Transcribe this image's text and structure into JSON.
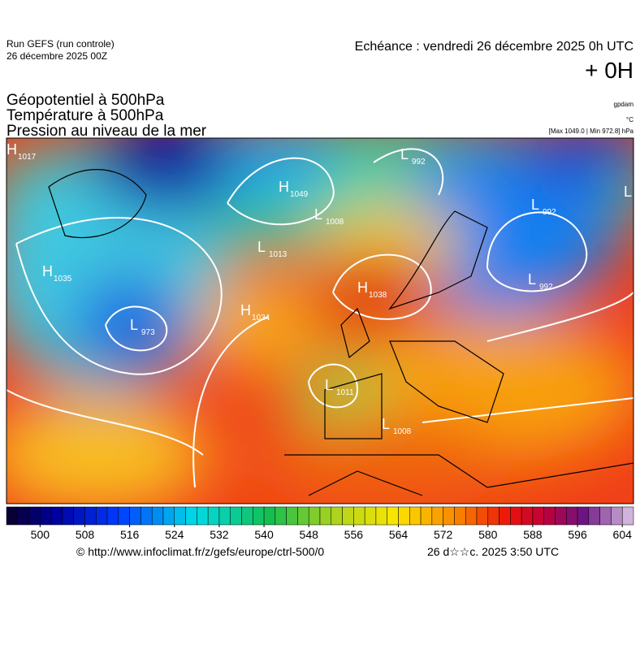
{
  "header": {
    "run": "Run GEFS (run controle)",
    "run_date": "26 décembre 2025 00Z",
    "echeance": "Echéance : vendredi 26 décembre 2025 0h UTC",
    "offset": "+ 0H"
  },
  "fields": [
    "Géopotentiel à 500hPa",
    "Température à 500hPa",
    "Pression au niveau de la mer"
  ],
  "units": [
    "gpdam",
    "°C",
    "[Max 1049.0 | Min 972.8] hPa"
  ],
  "centers": [
    {
      "letter": "H",
      "value": 1017
    },
    {
      "letter": "H",
      "value": 1035
    },
    {
      "letter": "L",
      "value": 973
    },
    {
      "letter": "H",
      "value": 1049
    },
    {
      "letter": "L",
      "value": 1008
    },
    {
      "letter": "L",
      "value": 1013
    },
    {
      "letter": "H",
      "value": 1034
    },
    {
      "letter": "H",
      "value": 1038
    },
    {
      "letter": "L",
      "value": 992
    },
    {
      "letter": "L",
      "value": 992
    },
    {
      "letter": "L",
      "value": 992
    },
    {
      "letter": "L",
      "value": 1011
    },
    {
      "letter": "L",
      "value": 1008
    },
    {
      "letter": "L"
    }
  ],
  "colorbar": {
    "lim": [
      494,
      606
    ],
    "ticks": [
      500,
      508,
      516,
      524,
      532,
      540,
      548,
      556,
      564,
      572,
      580,
      588,
      596,
      604
    ]
  },
  "footer": {
    "url": "© http://www.infoclimat.fr/z/gefs/europe/ctrl-500/0",
    "time": "26 d☆☆c. 2025  3:50 UTC"
  }
}
